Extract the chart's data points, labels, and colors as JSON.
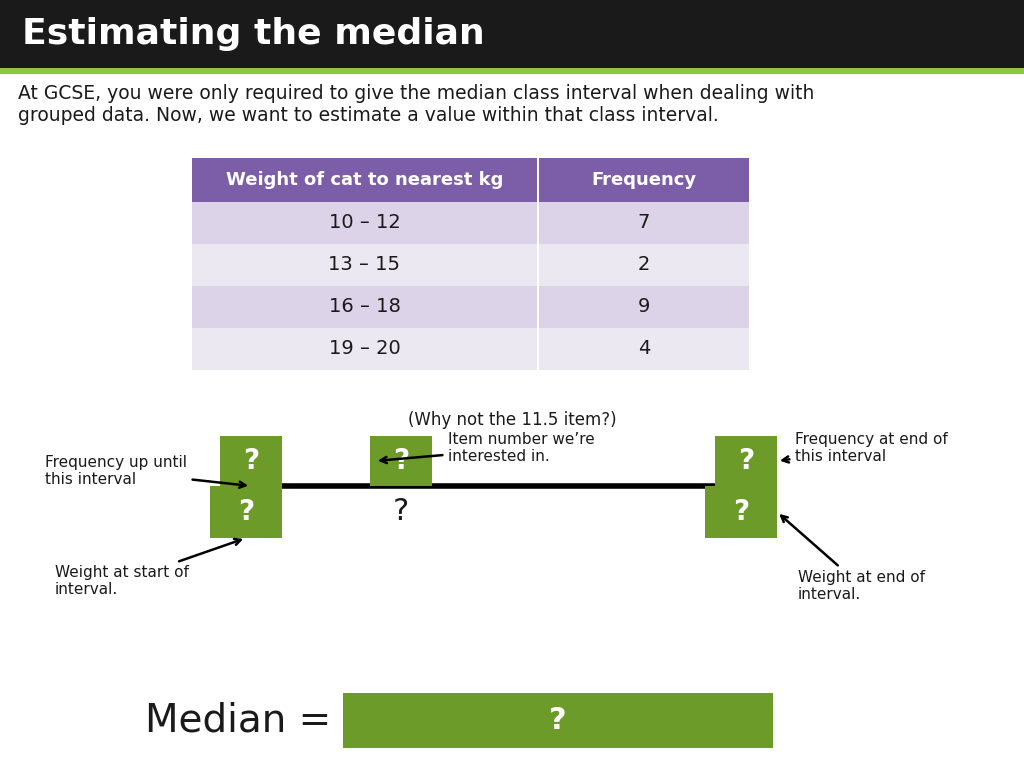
{
  "title": "Estimating the median",
  "title_bg": "#1a1a1a",
  "title_color": "#ffffff",
  "title_fontsize": 26,
  "accent_line_color": "#8dc63f",
  "body_text": "At GCSE, you were only required to give the median class interval when dealing with\ngrouped data. Now, we want to estimate a value within that class interval.",
  "body_fontsize": 13.5,
  "table_header_bg": "#7b5ea7",
  "table_header_color": "#ffffff",
  "table_row_bg1": "#dcd3e8",
  "table_row_bg2": "#ece8f2",
  "table_col1": "Weight of cat to nearest kg",
  "table_col2": "Frequency",
  "table_rows": [
    [
      "10 – 12",
      "7"
    ],
    [
      "13 – 15",
      "2"
    ],
    [
      "16 – 18",
      "9"
    ],
    [
      "19 – 20",
      "4"
    ]
  ],
  "green_box_color": "#6d9b2a",
  "why_not_text": "(Why not the 11.5 item?)",
  "freq_up_label": "Frequency up until\nthis interval",
  "item_num_label": "Item number we’re\ninterested in.",
  "freq_end_label": "Frequency at end of\nthis interval",
  "weight_start_label": "Weight at start of\ninterval.",
  "weight_end_label": "Weight at end of\ninterval.",
  "median_label": "Median =",
  "median_fontsize": 28
}
